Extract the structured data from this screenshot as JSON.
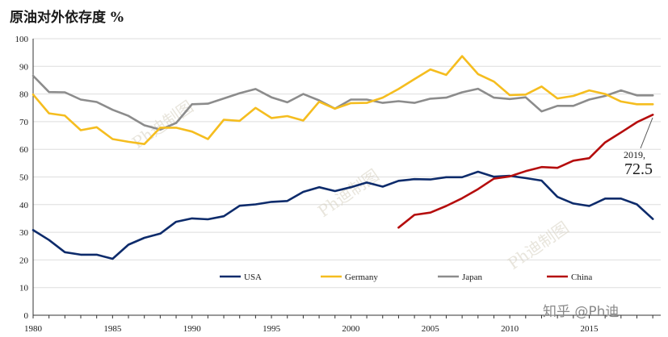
{
  "chart_data": {
    "type": "line",
    "title": "原油对外依存度 %",
    "x": [
      1980,
      1981,
      1982,
      1983,
      1984,
      1985,
      1986,
      1987,
      1988,
      1989,
      1990,
      1991,
      1992,
      1993,
      1994,
      1995,
      1996,
      1997,
      1998,
      1999,
      2000,
      2001,
      2002,
      2003,
      2004,
      2005,
      2006,
      2007,
      2008,
      2009,
      2010,
      2011,
      2012,
      2013,
      2014,
      2015,
      2016,
      2017,
      2018,
      2019
    ],
    "xticks": [
      1980,
      1985,
      1990,
      1995,
      2000,
      2005,
      2010,
      2015
    ],
    "ylim": [
      0,
      100
    ],
    "yticks": [
      0,
      10,
      20,
      30,
      40,
      50,
      60,
      70,
      80,
      90,
      100
    ],
    "grid": "horizontal",
    "legend_position": "bottom",
    "series": [
      {
        "name": "USA",
        "color": "#0d2b6b",
        "values": [
          30.8,
          27.2,
          22.8,
          21.9,
          21.9,
          20.4,
          25.5,
          28.0,
          29.5,
          33.8,
          35.0,
          34.7,
          35.8,
          39.6,
          40.1,
          41.0,
          41.3,
          44.6,
          46.3,
          44.9,
          46.3,
          48.0,
          46.5,
          48.6,
          49.2,
          49.1,
          49.9,
          49.9,
          51.9,
          50.1,
          50.4,
          49.6,
          48.7,
          42.8,
          40.4,
          39.5,
          42.2,
          42.2,
          40.1,
          34.8
        ]
      },
      {
        "name": "Germany",
        "color": "#f5bd1f",
        "values": [
          79.8,
          73.0,
          72.2,
          66.9,
          68.0,
          63.7,
          62.7,
          61.9,
          67.8,
          67.8,
          66.4,
          63.7,
          70.7,
          70.3,
          75.0,
          71.3,
          72.0,
          70.4,
          77.2,
          74.7,
          76.7,
          76.8,
          78.7,
          81.8,
          85.4,
          88.9,
          86.9,
          93.7,
          87.2,
          84.5,
          79.6,
          79.8,
          82.7,
          78.4,
          79.3,
          81.3,
          80.0,
          77.3,
          76.3,
          76.3
        ]
      },
      {
        "name": "Japan",
        "color": "#8c8c8c",
        "values": [
          86.6,
          80.7,
          80.6,
          78.0,
          77.1,
          74.3,
          72.1,
          68.7,
          67.1,
          69.5,
          76.3,
          76.5,
          78.4,
          80.3,
          81.8,
          78.8,
          77.0,
          80.0,
          77.7,
          74.7,
          78.0,
          78.0,
          76.8,
          77.4,
          76.8,
          78.3,
          78.7,
          80.6,
          81.9,
          78.7,
          78.2,
          78.8,
          73.7,
          75.7,
          75.7,
          78.0,
          79.3,
          81.3,
          79.5,
          79.5
        ]
      },
      {
        "name": "China",
        "color": "#b50d0d",
        "values": [
          null,
          null,
          null,
          null,
          null,
          null,
          null,
          null,
          null,
          null,
          null,
          null,
          null,
          null,
          null,
          null,
          null,
          null,
          null,
          null,
          null,
          null,
          null,
          31.7,
          36.3,
          37.1,
          39.5,
          42.3,
          45.6,
          49.4,
          50.2,
          52.1,
          53.6,
          53.3,
          55.9,
          56.8,
          62.5,
          66.1,
          69.8,
          72.5
        ]
      }
    ],
    "annotation": {
      "year_label": "2019,",
      "value_label": "72.5"
    }
  },
  "watermarks": [
    "Ph迪制图",
    "Ph迪制图",
    "Ph迪制图"
  ],
  "credit": "知乎 @Ph迪"
}
